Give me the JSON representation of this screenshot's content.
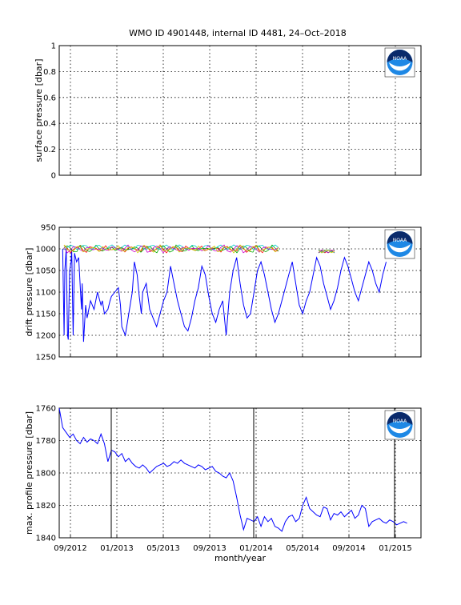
{
  "title": "WMO ID 4901448, internal ID 4481, 24–Oct–2018",
  "x_axis": {
    "label": "month/year",
    "ticks": [
      "09/2012",
      "01/2013",
      "05/2013",
      "09/2013",
      "01/2014",
      "05/2014",
      "09/2014",
      "01/2015"
    ]
  },
  "logo": {
    "name": "noaa-logo",
    "text": "NOAA"
  },
  "chart_data": [
    {
      "type": "line",
      "ylabel": "surface pressure [dbar]",
      "ylim": [
        0,
        1
      ],
      "yticks": [
        "0",
        "0.2",
        "0.4",
        "0.6",
        "0.8",
        "1"
      ],
      "y_reversed": false,
      "grid": true,
      "series": []
    },
    {
      "type": "line",
      "ylabel": "drift pressure [dbar]",
      "ylim": [
        950,
        1250
      ],
      "yticks": [
        "950",
        "1000",
        "1050",
        "1100",
        "1150",
        "1200",
        "1250"
      ],
      "y_reversed": true,
      "grid": true,
      "series": [
        {
          "color": "#0000ff",
          "x": [
            0.05,
            0.07,
            0.08,
            0.1,
            0.12,
            0.13,
            0.15,
            0.17,
            0.18,
            0.2,
            0.22,
            0.25,
            0.28,
            0.32,
            0.33,
            0.35,
            0.38,
            0.4,
            0.45,
            0.5,
            0.55,
            0.6,
            0.62,
            0.65,
            0.7,
            0.73,
            0.75,
            0.8,
            0.85,
            0.88,
            0.9,
            0.95,
            1.0,
            1.05,
            1.08,
            1.12,
            1.15,
            1.18,
            1.2,
            1.25,
            1.3,
            1.35,
            1.4,
            1.45,
            1.5,
            1.55,
            1.6,
            1.65,
            1.7,
            1.75,
            1.8,
            1.85,
            1.9,
            1.95,
            2.0,
            2.05,
            2.1,
            2.15,
            2.2,
            2.25,
            2.3,
            2.35,
            2.4,
            2.45,
            2.5,
            2.55,
            2.6,
            2.65,
            2.7,
            2.75,
            2.8,
            2.85,
            2.9,
            2.95,
            3.0,
            3.05,
            3.1,
            3.15,
            3.2,
            3.25,
            3.3,
            3.35,
            3.4,
            3.45,
            3.5,
            3.55,
            3.6,
            3.65,
            3.7,
            3.75,
            3.8,
            3.85,
            3.9,
            3.95,
            4.0,
            4.05,
            4.1,
            4.15,
            4.2,
            4.25,
            4.3,
            4.35,
            4.4,
            4.45,
            4.5,
            4.55,
            4.6,
            4.65,
            4.7
          ],
          "y": [
            1000,
            1200,
            1050,
            1000,
            1200,
            1210,
            1050,
            1030,
            1000,
            1200,
            1010,
            1030,
            1020,
            1140,
            1080,
            1215,
            1130,
            1160,
            1120,
            1140,
            1100,
            1130,
            1120,
            1150,
            1140,
            1120,
            1110,
            1100,
            1090,
            1130,
            1180,
            1200,
            1150,
            1100,
            1030,
            1060,
            1110,
            1150,
            1100,
            1080,
            1140,
            1160,
            1180,
            1150,
            1120,
            1100,
            1040,
            1080,
            1120,
            1150,
            1180,
            1190,
            1160,
            1120,
            1090,
            1040,
            1060,
            1110,
            1150,
            1170,
            1140,
            1120,
            1200,
            1100,
            1050,
            1020,
            1080,
            1130,
            1160,
            1150,
            1100,
            1050,
            1030,
            1060,
            1100,
            1140,
            1170,
            1150,
            1120,
            1090,
            1060,
            1030,
            1080,
            1130,
            1150,
            1120,
            1100,
            1060,
            1020,
            1040,
            1080,
            1110,
            1140,
            1120,
            1090,
            1050,
            1020,
            1040,
            1070,
            1100,
            1120,
            1090,
            1060,
            1030,
            1050,
            1080,
            1100,
            1060,
            1030
          ]
        }
      ]
    },
    {
      "type": "line",
      "ylabel": "max. profile pressure [dbar]",
      "ylim": [
        1760,
        1840
      ],
      "yticks": [
        "1760",
        "1780",
        "1800",
        "1820",
        "1840"
      ],
      "y_reversed": true,
      "grid": true,
      "series": [
        {
          "color": "#0000ff",
          "x": [
            0.0,
            0.05,
            0.1,
            0.15,
            0.2,
            0.25,
            0.3,
            0.35,
            0.4,
            0.45,
            0.5,
            0.55,
            0.6,
            0.65,
            0.7,
            0.75,
            0.8,
            0.85,
            0.9,
            0.95,
            1.0,
            1.05,
            1.1,
            1.15,
            1.2,
            1.25,
            1.3,
            1.35,
            1.4,
            1.45,
            1.5,
            1.55,
            1.6,
            1.65,
            1.7,
            1.75,
            1.8,
            1.85,
            1.9,
            1.95,
            2.0,
            2.05,
            2.1,
            2.15,
            2.2,
            2.25,
            2.3,
            2.35,
            2.4,
            2.45,
            2.5,
            2.55,
            2.6,
            2.65,
            2.7,
            2.75,
            2.8,
            2.85,
            2.9,
            2.95,
            3.0,
            3.05,
            3.1,
            3.15,
            3.2,
            3.25,
            3.3,
            3.35,
            3.4,
            3.45,
            3.5,
            3.55,
            3.6,
            3.65,
            3.7,
            3.75,
            3.8,
            3.85,
            3.9,
            3.95,
            4.0,
            4.05,
            4.1,
            4.15,
            4.2,
            4.25,
            4.3,
            4.35,
            4.4,
            4.45,
            4.5,
            4.55,
            4.6,
            4.65,
            4.7,
            4.75,
            4.8,
            4.85,
            4.9,
            4.95,
            5.0
          ],
          "y": [
            1760,
            1772,
            1775,
            1778,
            1776,
            1780,
            1782,
            1778,
            1781,
            1779,
            1780,
            1782,
            1776,
            1782,
            1793,
            1786,
            1787,
            1790,
            1788,
            1793,
            1791,
            1794,
            1796,
            1797,
            1795,
            1797,
            1800,
            1798,
            1796,
            1795,
            1794,
            1796,
            1795,
            1793,
            1794,
            1792,
            1794,
            1795,
            1796,
            1797,
            1795,
            1796,
            1798,
            1797,
            1796,
            1799,
            1800,
            1802,
            1803,
            1800,
            1805,
            1815,
            1826,
            1835,
            1828,
            1829,
            1830,
            1827,
            1833,
            1827,
            1830,
            1828,
            1833,
            1834,
            1836,
            1830,
            1827,
            1826,
            1830,
            1828,
            1820,
            1815,
            1822,
            1824,
            1826,
            1827,
            1821,
            1822,
            1829,
            1825,
            1826,
            1824,
            1827,
            1825,
            1823,
            1828,
            1826,
            1820,
            1822,
            1833,
            1830,
            1829,
            1828,
            1830,
            1831,
            1829,
            1830,
            1832,
            1831,
            1830,
            1831
          ]
        }
      ]
    }
  ]
}
